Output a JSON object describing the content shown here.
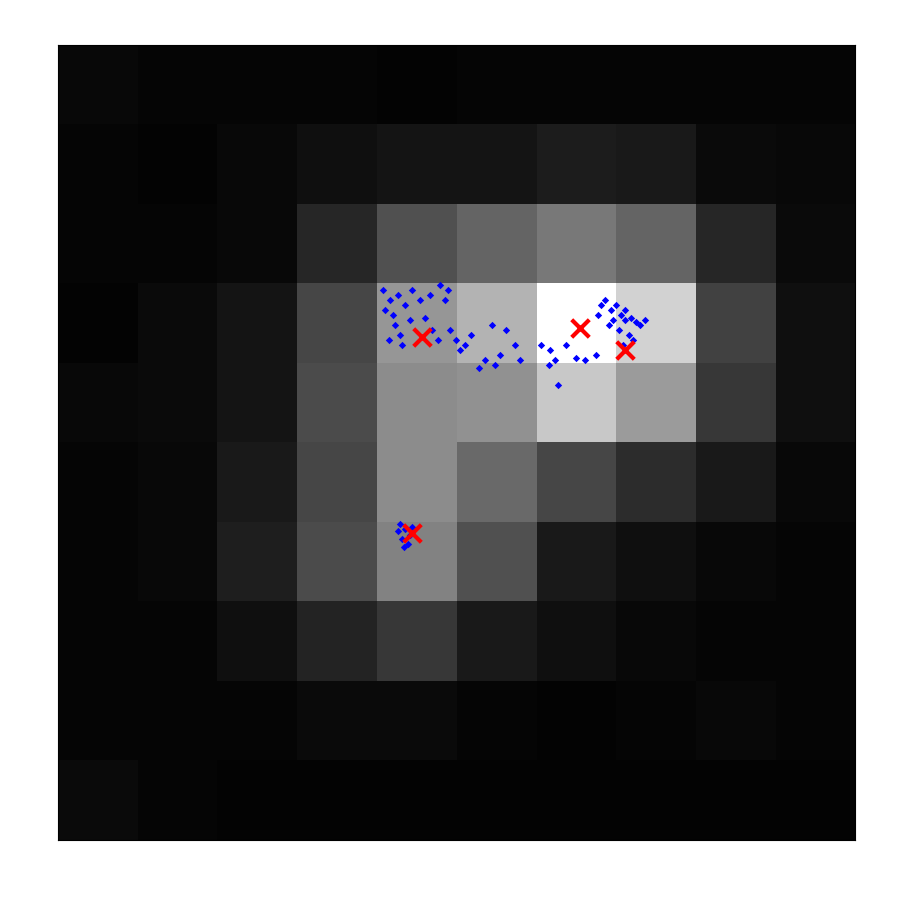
{
  "chart_data": {
    "type": "heatmap",
    "cells": [
      [
        8,
        5,
        5,
        5,
        3,
        5,
        5,
        5,
        5,
        5
      ],
      [
        5,
        3,
        8,
        15,
        20,
        20,
        28,
        25,
        10,
        8
      ],
      [
        5,
        5,
        8,
        38,
        80,
        100,
        120,
        100,
        38,
        10
      ],
      [
        3,
        10,
        20,
        70,
        150,
        180,
        255,
        210,
        65,
        15
      ],
      [
        8,
        10,
        20,
        75,
        140,
        145,
        200,
        155,
        55,
        15
      ],
      [
        5,
        8,
        25,
        70,
        140,
        105,
        70,
        45,
        25,
        8
      ],
      [
        5,
        8,
        30,
        75,
        130,
        80,
        25,
        15,
        8,
        5
      ],
      [
        5,
        5,
        15,
        35,
        55,
        25,
        15,
        8,
        5,
        5
      ],
      [
        5,
        5,
        5,
        10,
        10,
        5,
        3,
        5,
        8,
        5
      ],
      [
        10,
        5,
        3,
        3,
        3,
        3,
        3,
        3,
        3,
        3
      ]
    ],
    "color_range": [
      0,
      255
    ],
    "xlim": [
      0,
      10
    ],
    "ylim": [
      10,
      0
    ],
    "tick_labels": false,
    "series": [
      {
        "type": "scatter",
        "color": "#0000ff",
        "marker": "diamond",
        "x": [
          4.08,
          4.17,
          4.11,
          4.27,
          4.36,
          4.44,
          4.55,
          4.67,
          4.8,
          4.9,
          4.86,
          4.23,
          4.29,
          4.42,
          4.61,
          4.7,
          4.77,
          4.92,
          4.99,
          5.05,
          5.11,
          5.18,
          5.28,
          5.36,
          5.49,
          5.55,
          5.45,
          5.62,
          5.74,
          5.8,
          6.06,
          6.18,
          6.24,
          6.37,
          6.5,
          6.62,
          6.75,
          6.27,
          6.16,
          4.15,
          4.2,
          4.32,
          6.81,
          6.87,
          6.94,
          7.0,
          7.06,
          7.12,
          7.19,
          7.25,
          7.31,
          6.96,
          7.04,
          7.16,
          7.09,
          7.21,
          6.91,
          6.78,
          7.37,
          7.12,
          4.3,
          4.36,
          4.42,
          4.32,
          4.4,
          4.27,
          4.45,
          4.35
        ],
        "y": [
          3.08,
          3.21,
          3.33,
          3.14,
          3.27,
          3.08,
          3.21,
          3.14,
          3.02,
          3.08,
          3.21,
          3.52,
          3.65,
          3.46,
          3.43,
          3.58,
          3.71,
          3.58,
          3.71,
          3.84,
          3.77,
          3.65,
          4.06,
          3.96,
          4.03,
          3.9,
          3.52,
          3.58,
          3.77,
          3.96,
          3.77,
          3.84,
          3.96,
          3.77,
          3.94,
          3.96,
          3.9,
          4.28,
          4.03,
          3.71,
          3.4,
          3.77,
          3.27,
          3.21,
          3.33,
          3.27,
          3.4,
          3.46,
          3.43,
          3.48,
          3.52,
          3.46,
          3.58,
          3.65,
          3.77,
          3.71,
          3.52,
          3.4,
          3.46,
          3.33,
          6.03,
          6.09,
          6.16,
          6.22,
          6.28,
          6.12,
          6.07,
          6.32
        ]
      },
      {
        "type": "scatter",
        "color": "#ff0000",
        "marker": "x",
        "x": [
          4.57,
          6.55,
          7.11,
          4.45
        ],
        "y": [
          3.67,
          3.56,
          3.84,
          6.14
        ]
      }
    ]
  }
}
